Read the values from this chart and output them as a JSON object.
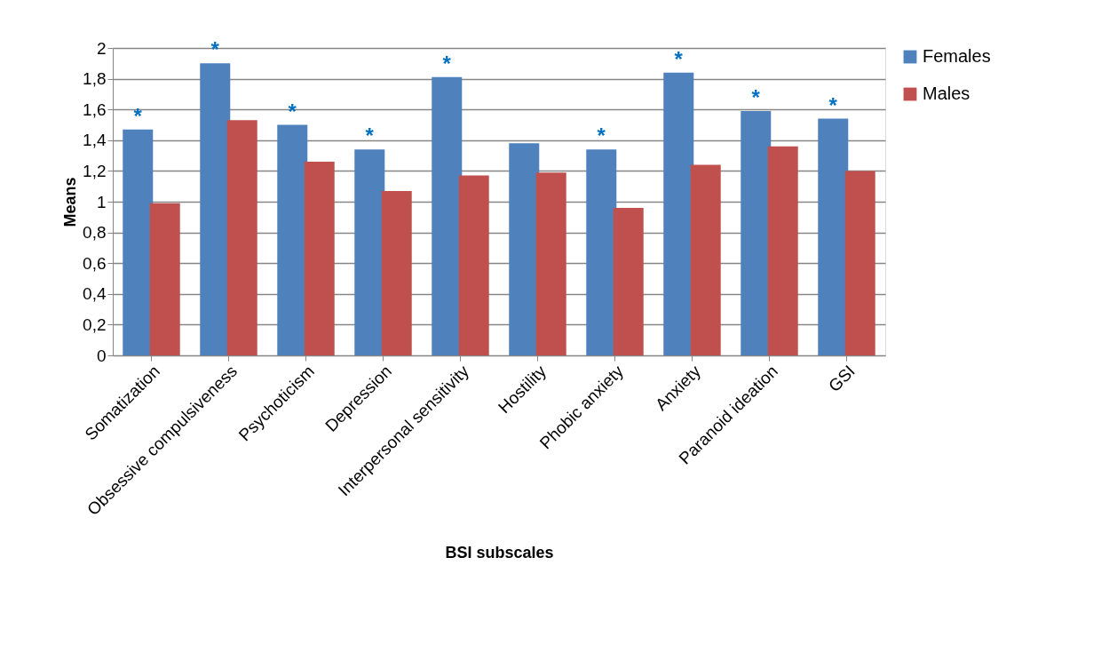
{
  "chart_data": {
    "type": "bar",
    "xlabel": "BSI subscales",
    "ylabel": "Means",
    "categories": [
      "Somatization",
      "Obsessive compulsiveness",
      "Psychoticism",
      "Depression",
      "Interpersonal sensitivity",
      "Hostility",
      "Phobic anxiety",
      "Anxiety",
      "Paranoid ideation",
      "GSI"
    ],
    "series": [
      {
        "name": "Females",
        "color": "#4f81bd",
        "values": [
          1.47,
          1.9,
          1.5,
          1.34,
          1.81,
          1.38,
          1.34,
          1.84,
          1.59,
          1.54
        ]
      },
      {
        "name": "Males",
        "color": "#c0504d",
        "values": [
          0.99,
          1.53,
          1.26,
          1.07,
          1.17,
          1.19,
          0.96,
          1.24,
          1.36,
          1.2
        ]
      }
    ],
    "ylim": [
      0,
      2
    ],
    "yticks": [
      0,
      {
        "value": 0.2,
        "label": "0,2"
      },
      {
        "value": 0.4,
        "label": "0,4"
      },
      {
        "value": 0.6,
        "label": "0,6"
      },
      {
        "value": 0.8,
        "label": "0,8"
      },
      1,
      {
        "value": 1.2,
        "label": "1,2"
      },
      {
        "value": 1.4,
        "label": "1,4"
      },
      {
        "value": 1.6,
        "label": "1,6"
      },
      {
        "value": 1.8,
        "label": "1,8"
      },
      2
    ],
    "grid": "y",
    "legend": "right",
    "annotations": [
      {
        "text": "*",
        "x": "Somatization",
        "y": 1.47
      },
      {
        "text": "*",
        "x": "Obsessive compulsiveness",
        "y": 1.9
      },
      {
        "text": "*",
        "x": "Psychoticism",
        "y": 1.5
      },
      {
        "text": "*",
        "x": "Depression",
        "y": 1.34
      },
      {
        "text": "*",
        "x": "Interpersonal sensitivity",
        "y": 1.81
      },
      {
        "text": "*",
        "x": "Phobic anxiety",
        "y": 1.34
      },
      {
        "text": "*",
        "x": "Anxiety",
        "y": 1.84
      },
      {
        "text": "*",
        "x": "Paranoid ideation",
        "y": 1.59
      },
      {
        "text": "*",
        "x": "GSI",
        "y": 1.54
      }
    ]
  }
}
